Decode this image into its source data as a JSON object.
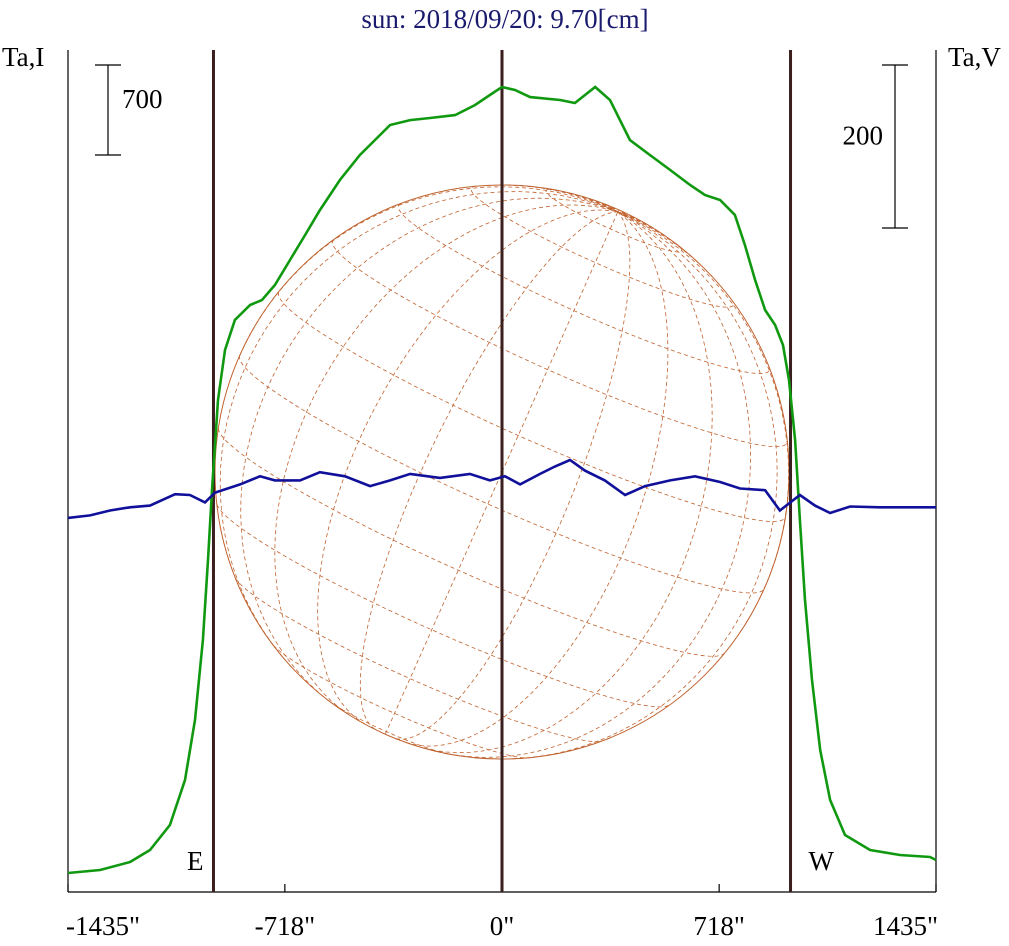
{
  "chart_data": {
    "type": "line",
    "title": "sun: 2018/09/20: 9.70[cm]",
    "xlim": [
      -1435,
      1435
    ],
    "xticks": [
      {
        "value": -1435,
        "label": "-1435\""
      },
      {
        "value": -718,
        "label": "-718\""
      },
      {
        "value": 0,
        "label": "0\""
      },
      {
        "value": 718,
        "label": "718\""
      },
      {
        "value": 1435,
        "label": "1435\""
      }
    ],
    "ylim": [
      0,
      6549
    ],
    "y2lim": [
      -472,
      561
    ],
    "markers": [
      {
        "x": -954,
        "label": "E"
      },
      {
        "x": 0
      },
      {
        "x": 954,
        "label": "W"
      }
    ],
    "series": [
      {
        "name": "Ta,I",
        "color": "#109910",
        "scale_bar": 700,
        "x": [
          -1435,
          -1329,
          -1230,
          -1164,
          -1098,
          -1048,
          -1015,
          -989,
          -972,
          -959,
          -939,
          -916,
          -883,
          -833,
          -794,
          -751,
          -701,
          -651,
          -602,
          -536,
          -470,
          -420,
          -370,
          -304,
          -238,
          -155,
          -89,
          -40,
          0,
          43,
          93,
          192,
          241,
          308,
          357,
          423,
          489,
          556,
          622,
          671,
          721,
          770,
          803,
          837,
          870,
          903,
          929,
          949,
          969,
          985,
          1002,
          1025,
          1052,
          1085,
          1134,
          1217,
          1316,
          1415,
          1435
        ],
        "values": [
          148,
          171,
          233,
          327,
          521,
          871,
          1338,
          1960,
          2582,
          3127,
          3827,
          4216,
          4449,
          4566,
          4604,
          4721,
          4916,
          5110,
          5304,
          5538,
          5732,
          5849,
          5966,
          6004,
          6020,
          6043,
          6121,
          6199,
          6261,
          6238,
          6183,
          6160,
          6137,
          6261,
          6160,
          5849,
          5732,
          5616,
          5499,
          5421,
          5382,
          5266,
          5032,
          4760,
          4527,
          4410,
          4254,
          3982,
          3516,
          2893,
          2271,
          1649,
          1104,
          716,
          443,
          327,
          288,
          272,
          249
        ]
      },
      {
        "name": "Ta,V",
        "color": "#10109a",
        "axis": "y2",
        "scale_bar": 200,
        "x": [
          -1435,
          -1362,
          -1296,
          -1230,
          -1164,
          -1081,
          -1032,
          -982,
          -949,
          -866,
          -800,
          -751,
          -668,
          -602,
          -519,
          -436,
          -370,
          -304,
          -205,
          -106,
          -40,
          10,
          60,
          126,
          175,
          225,
          274,
          340,
          407,
          473,
          556,
          638,
          721,
          787,
          870,
          919,
          985,
          1035,
          1085,
          1151,
          1250,
          1435
        ],
        "values": [
          -13,
          -10,
          -4,
          0,
          2,
          16,
          15,
          6,
          18,
          28,
          38,
          33,
          33,
          43,
          38,
          26,
          33,
          41,
          36,
          41,
          33,
          38,
          28,
          41,
          50,
          58,
          45,
          33,
          15,
          26,
          33,
          38,
          31,
          23,
          21,
          -4,
          15,
          2,
          -7,
          1,
          0,
          0
        ]
      }
    ]
  }
}
